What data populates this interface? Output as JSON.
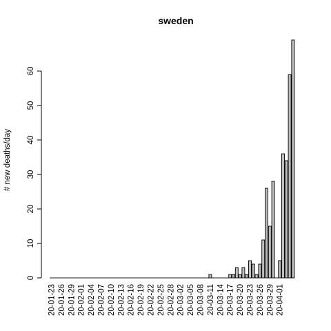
{
  "chart_data": {
    "type": "bar",
    "title": "sweden",
    "xlabel": "",
    "ylabel": "# new deaths/day",
    "ylim": [
      0,
      70
    ],
    "yticks": [
      0,
      10,
      20,
      30,
      40,
      50,
      60
    ],
    "tick_labels": [
      "20-01-23",
      "20-01-26",
      "20-01-29",
      "20-02-01",
      "20-02-04",
      "20-02-07",
      "20-02-10",
      "20-02-13",
      "20-02-16",
      "20-02-19",
      "20-02-22",
      "20-02-25",
      "20-02-28",
      "20-03-02",
      "20-03-05",
      "20-03-08",
      "20-03-11",
      "20-03-14",
      "20-03-17",
      "20-03-20",
      "20-03-23",
      "20-03-26",
      "20-03-29",
      "20-04-01"
    ],
    "values": [
      0,
      0,
      0,
      0,
      0,
      0,
      0,
      0,
      0,
      0,
      0,
      0,
      0,
      0,
      0,
      0,
      0,
      0,
      0,
      0,
      0,
      0,
      0,
      0,
      0,
      0,
      0,
      0,
      0,
      0,
      0,
      0,
      0,
      0,
      0,
      0,
      0,
      0,
      0,
      0,
      0,
      0,
      0,
      0,
      0,
      0,
      0,
      0,
      1,
      0,
      0,
      0,
      0,
      0,
      1,
      1,
      3,
      1,
      3,
      1,
      5,
      4,
      1,
      4,
      11,
      26,
      15,
      28,
      0,
      5,
      36,
      34,
      59,
      69
    ],
    "colors": {
      "bar_fill": "#bebebe",
      "bar_stroke": "#000000",
      "axis": "#000000"
    },
    "grid": false,
    "legend": "none"
  }
}
